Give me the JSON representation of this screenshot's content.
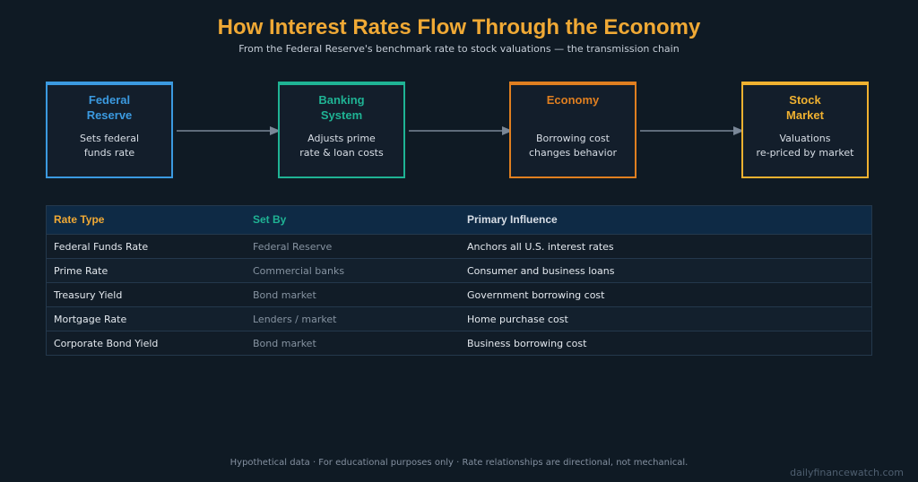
{
  "title": "How Interest Rates Flow Through the Economy",
  "subtitle": "From the Federal Reserve's benchmark rate to stock valuations — the transmission chain",
  "flow": [
    {
      "title": "Federal\nReserve",
      "description": "Sets federal\nfunds rate",
      "color": "#3b9ae0"
    },
    {
      "title": "Banking\nSystem",
      "description": "Adjusts prime\nrate & loan costs",
      "color": "#1fb394"
    },
    {
      "title": "Economy",
      "description": "Borrowing cost\nchanges behavior",
      "color": "#e07f20"
    },
    {
      "title": "Stock\nMarket",
      "description": "Valuations\nre-priced by market",
      "color": "#f0b130"
    }
  ],
  "table": {
    "headers": [
      {
        "label": "Rate Type",
        "color": "#f0a935"
      },
      {
        "label": "Set By",
        "color": "#1fb394"
      },
      {
        "label": "Primary Influence",
        "color": "#d8dee6"
      }
    ],
    "rows": [
      [
        "Federal Funds Rate",
        "Federal Reserve",
        "Anchors all U.S. interest rates"
      ],
      [
        "Prime Rate",
        "Commercial banks",
        "Consumer and business loans"
      ],
      [
        "Treasury Yield",
        "Bond market",
        "Government borrowing cost"
      ],
      [
        "Mortgage Rate",
        "Lenders / market",
        "Home purchase cost"
      ],
      [
        "Corporate Bond Yield",
        "Bond market",
        "Business borrowing cost"
      ]
    ]
  },
  "footer": "Hypothetical data · For educational purposes only · Rate relationships are directional, not mechanical.",
  "brand": "dailyfinancewatch.com"
}
